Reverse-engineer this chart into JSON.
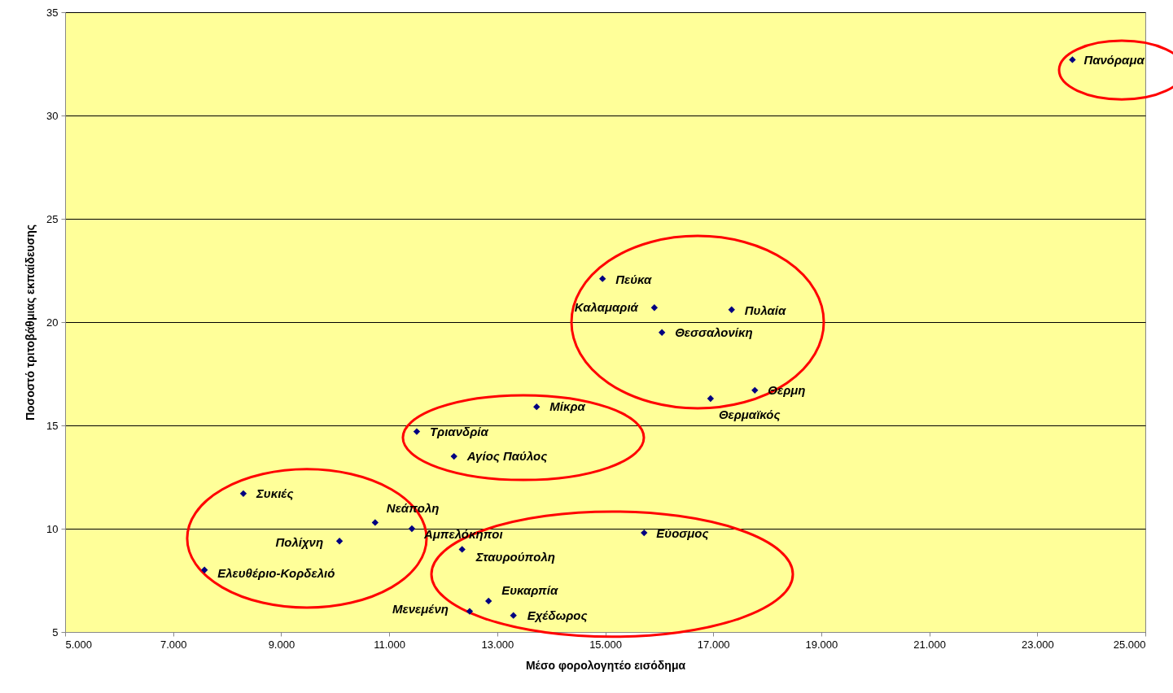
{
  "chart_data": {
    "type": "scatter",
    "xlabel": "Μέσο φορολογητέο εισόδημα",
    "ylabel": "Ποσοστό τριτοβάθμιας εκπαίδευσης",
    "x": [
      23650,
      14950,
      15910,
      17340,
      16050,
      17770,
      16950,
      13730,
      11510,
      12200,
      8300,
      10740,
      11420,
      10080,
      15720,
      12350,
      7580,
      12840,
      12490,
      13300
    ],
    "series": [
      {
        "color": "#000080",
        "values": [
          32.7,
          22.1,
          20.7,
          20.6,
          19.5,
          16.7,
          16.3,
          15.9,
          14.7,
          13.5,
          11.7,
          10.3,
          10.0,
          9.4,
          9.8,
          9.0,
          8.0,
          6.5,
          6.0,
          5.8
        ]
      }
    ],
    "annotations": [
      {
        "text": "Πανόραμα",
        "x": 23650,
        "y": 32.7
      },
      {
        "text": "Πεύκα",
        "x": 14950,
        "y": 22.1
      },
      {
        "text": "Καλαμαριά",
        "x": 15910,
        "y": 20.7
      },
      {
        "text": "Πυλαία",
        "x": 17340,
        "y": 20.6
      },
      {
        "text": "Θεσσαλονίκη",
        "x": 16050,
        "y": 19.5
      },
      {
        "text": "Θερμη",
        "x": 17770,
        "y": 16.7
      },
      {
        "text": "Θερμαϊκός",
        "x": 16950,
        "y": 16.3
      },
      {
        "text": "Μίκρα",
        "x": 13730,
        "y": 15.9
      },
      {
        "text": "Τριανδρία",
        "x": 11510,
        "y": 14.7
      },
      {
        "text": "Αγίος Παύλος",
        "x": 12200,
        "y": 13.5
      },
      {
        "text": "Συκιές",
        "x": 8300,
        "y": 11.7
      },
      {
        "text": "Νεάπολη",
        "x": 10740,
        "y": 10.3
      },
      {
        "text": "Αμπελόκηποι",
        "x": 11420,
        "y": 10.0
      },
      {
        "text": "Πολίχνη",
        "x": 10080,
        "y": 9.4
      },
      {
        "text": "Εύοσμος",
        "x": 15720,
        "y": 9.8
      },
      {
        "text": "Σταυρούπολη",
        "x": 12350,
        "y": 9.0
      },
      {
        "text": "Ελευθέριο-Κορδελιό",
        "x": 7580,
        "y": 8.0
      },
      {
        "text": "Ευκαρπία",
        "x": 12840,
        "y": 6.5
      },
      {
        "text": "Μενεμένη",
        "x": 12490,
        "y": 6.0
      },
      {
        "text": "Εχέδωρος",
        "x": 13300,
        "y": 5.8
      }
    ],
    "xlim": [
      5000,
      25000
    ],
    "ylim": [
      5,
      35
    ],
    "xticks": [
      {
        "value": 5000,
        "label": "5.000"
      },
      {
        "value": 7000,
        "label": "7.000"
      },
      {
        "value": 9000,
        "label": "9.000"
      },
      {
        "value": 11000,
        "label": "11.000"
      },
      {
        "value": 13000,
        "label": "13.000"
      },
      {
        "value": 15000,
        "label": "15.000"
      },
      {
        "value": 17000,
        "label": "17.000"
      },
      {
        "value": 19000,
        "label": "19.000"
      },
      {
        "value": 21000,
        "label": "21.000"
      },
      {
        "value": 23000,
        "label": "23.000"
      },
      {
        "value": 25000,
        "label": "25.000"
      }
    ],
    "yticks": [
      5,
      10,
      15,
      20,
      25,
      30,
      35
    ],
    "grid": "y",
    "marker": "diamond"
  }
}
